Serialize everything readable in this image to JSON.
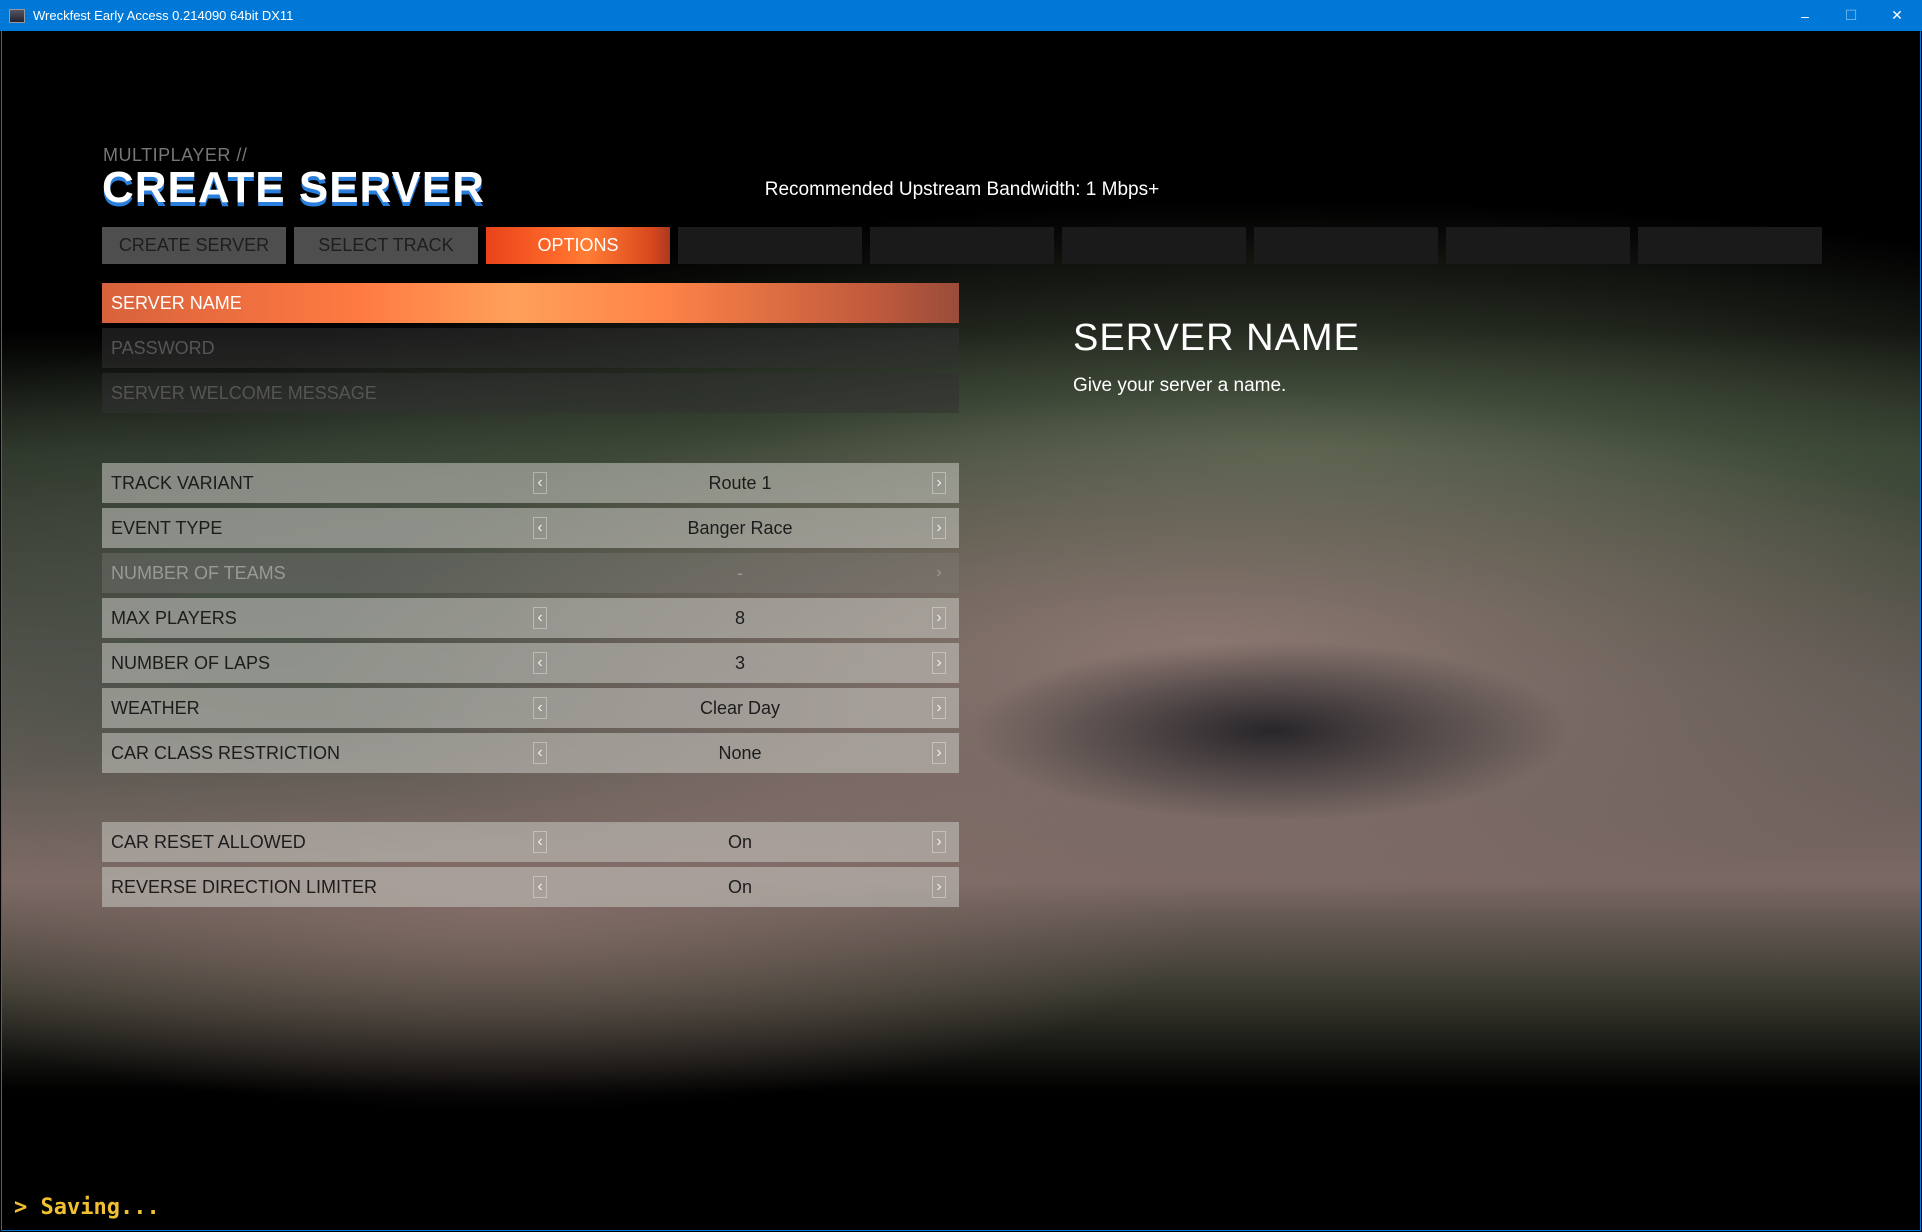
{
  "window": {
    "title": "Wreckfest Early Access 0.214090 64bit DX11",
    "minimize": "–",
    "maximize": "☐",
    "close": "✕"
  },
  "header": {
    "breadcrumb": "MULTIPLAYER //",
    "title": "CREATE SERVER",
    "bandwidth": "Recommended Upstream Bandwidth: 1 Mbps+"
  },
  "tabs": [
    {
      "label": "CREATE SERVER"
    },
    {
      "label": "SELECT TRACK"
    },
    {
      "label": "OPTIONS",
      "active": true
    },
    {
      "label": ""
    },
    {
      "label": ""
    },
    {
      "label": ""
    },
    {
      "label": ""
    },
    {
      "label": ""
    },
    {
      "label": ""
    }
  ],
  "fields": [
    {
      "label": "SERVER NAME"
    },
    {
      "label": "PASSWORD"
    },
    {
      "label": "SERVER WELCOME MESSAGE"
    }
  ],
  "options": [
    {
      "label": "TRACK VARIANT",
      "value": "Route 1"
    },
    {
      "label": "EVENT TYPE",
      "value": "Banger Race"
    },
    {
      "label": "NUMBER OF TEAMS",
      "value": "-",
      "disabled": true
    },
    {
      "label": "MAX PLAYERS",
      "value": "8"
    },
    {
      "label": "NUMBER OF LAPS",
      "value": "3"
    },
    {
      "label": "WEATHER",
      "value": "Clear Day"
    },
    {
      "label": "CAR CLASS RESTRICTION",
      "value": "None"
    }
  ],
  "options2": [
    {
      "label": "CAR RESET ALLOWED",
      "value": "On"
    },
    {
      "label": "REVERSE DIRECTION LIMITER",
      "value": "On"
    }
  ],
  "help": {
    "title": "SERVER NAME",
    "description": "Give your server a name."
  },
  "console": {
    "text": "> Saving..."
  },
  "icons": {
    "left": "‹",
    "right": "›"
  },
  "colors": {
    "accent": "#ff6a2a",
    "titlebar": "#0078d7",
    "console": "#f0c030"
  }
}
